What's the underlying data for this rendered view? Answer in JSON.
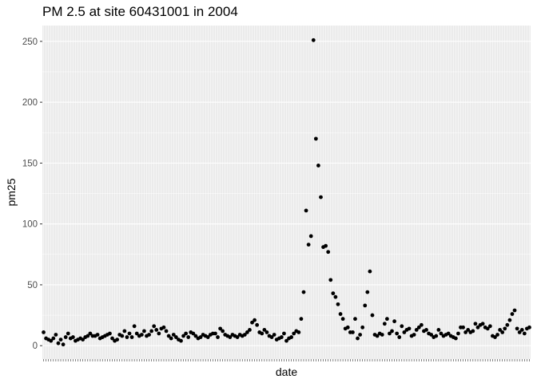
{
  "chart_data": {
    "type": "scatter",
    "title": "PM 2.5 at site 60431001 in 2004",
    "xlabel": "date",
    "ylabel": "pm25",
    "x_scale": "discrete",
    "ylim": [
      -11,
      263
    ],
    "y_ticks": [
      0,
      50,
      100,
      150,
      200,
      250
    ],
    "grid": true,
    "panel_background": "#ebebeb",
    "gridline_color": "#ffffff",
    "point_color": "#000000",
    "series": [
      {
        "values": [
          11,
          6,
          5,
          4,
          6,
          9,
          2,
          5,
          1,
          7,
          10,
          6,
          7,
          4,
          5,
          6,
          5,
          7,
          8,
          10,
          8,
          8,
          9,
          6,
          7,
          8,
          9,
          10,
          6,
          4,
          5,
          9,
          8,
          12,
          7,
          10,
          7,
          16,
          10,
          8,
          9,
          12,
          8,
          9,
          12,
          16,
          13,
          10,
          14,
          15,
          12,
          8,
          6,
          9,
          7,
          5,
          4,
          8,
          10,
          7,
          11,
          10,
          8,
          6,
          7,
          9,
          8,
          7,
          9,
          10,
          10,
          7,
          14,
          12,
          9,
          8,
          7,
          9,
          8,
          7,
          9,
          8,
          9,
          11,
          13,
          19,
          21,
          17,
          11,
          10,
          13,
          11,
          8,
          7,
          9,
          5,
          6,
          7,
          10,
          4,
          6,
          7,
          10,
          12,
          11,
          22,
          44,
          111,
          83,
          90,
          251,
          170,
          148,
          122,
          81,
          82,
          77,
          54,
          43,
          40,
          34,
          26,
          22,
          14,
          15,
          11,
          11,
          22,
          6,
          9,
          15,
          33,
          44,
          61,
          25,
          9,
          8,
          10,
          9,
          18,
          22,
          10,
          12,
          20,
          10,
          7,
          16,
          11,
          13,
          14,
          8,
          9,
          13,
          15,
          17,
          12,
          13,
          10,
          9,
          7,
          8,
          13,
          10,
          8,
          9,
          10,
          8,
          7,
          6,
          10,
          15,
          15,
          11,
          13,
          11,
          12,
          18,
          15,
          17,
          18,
          15,
          14,
          16,
          8,
          7,
          9,
          13,
          11,
          14,
          17,
          21,
          26,
          29,
          14,
          11,
          13,
          10,
          14,
          15
        ]
      }
    ]
  }
}
